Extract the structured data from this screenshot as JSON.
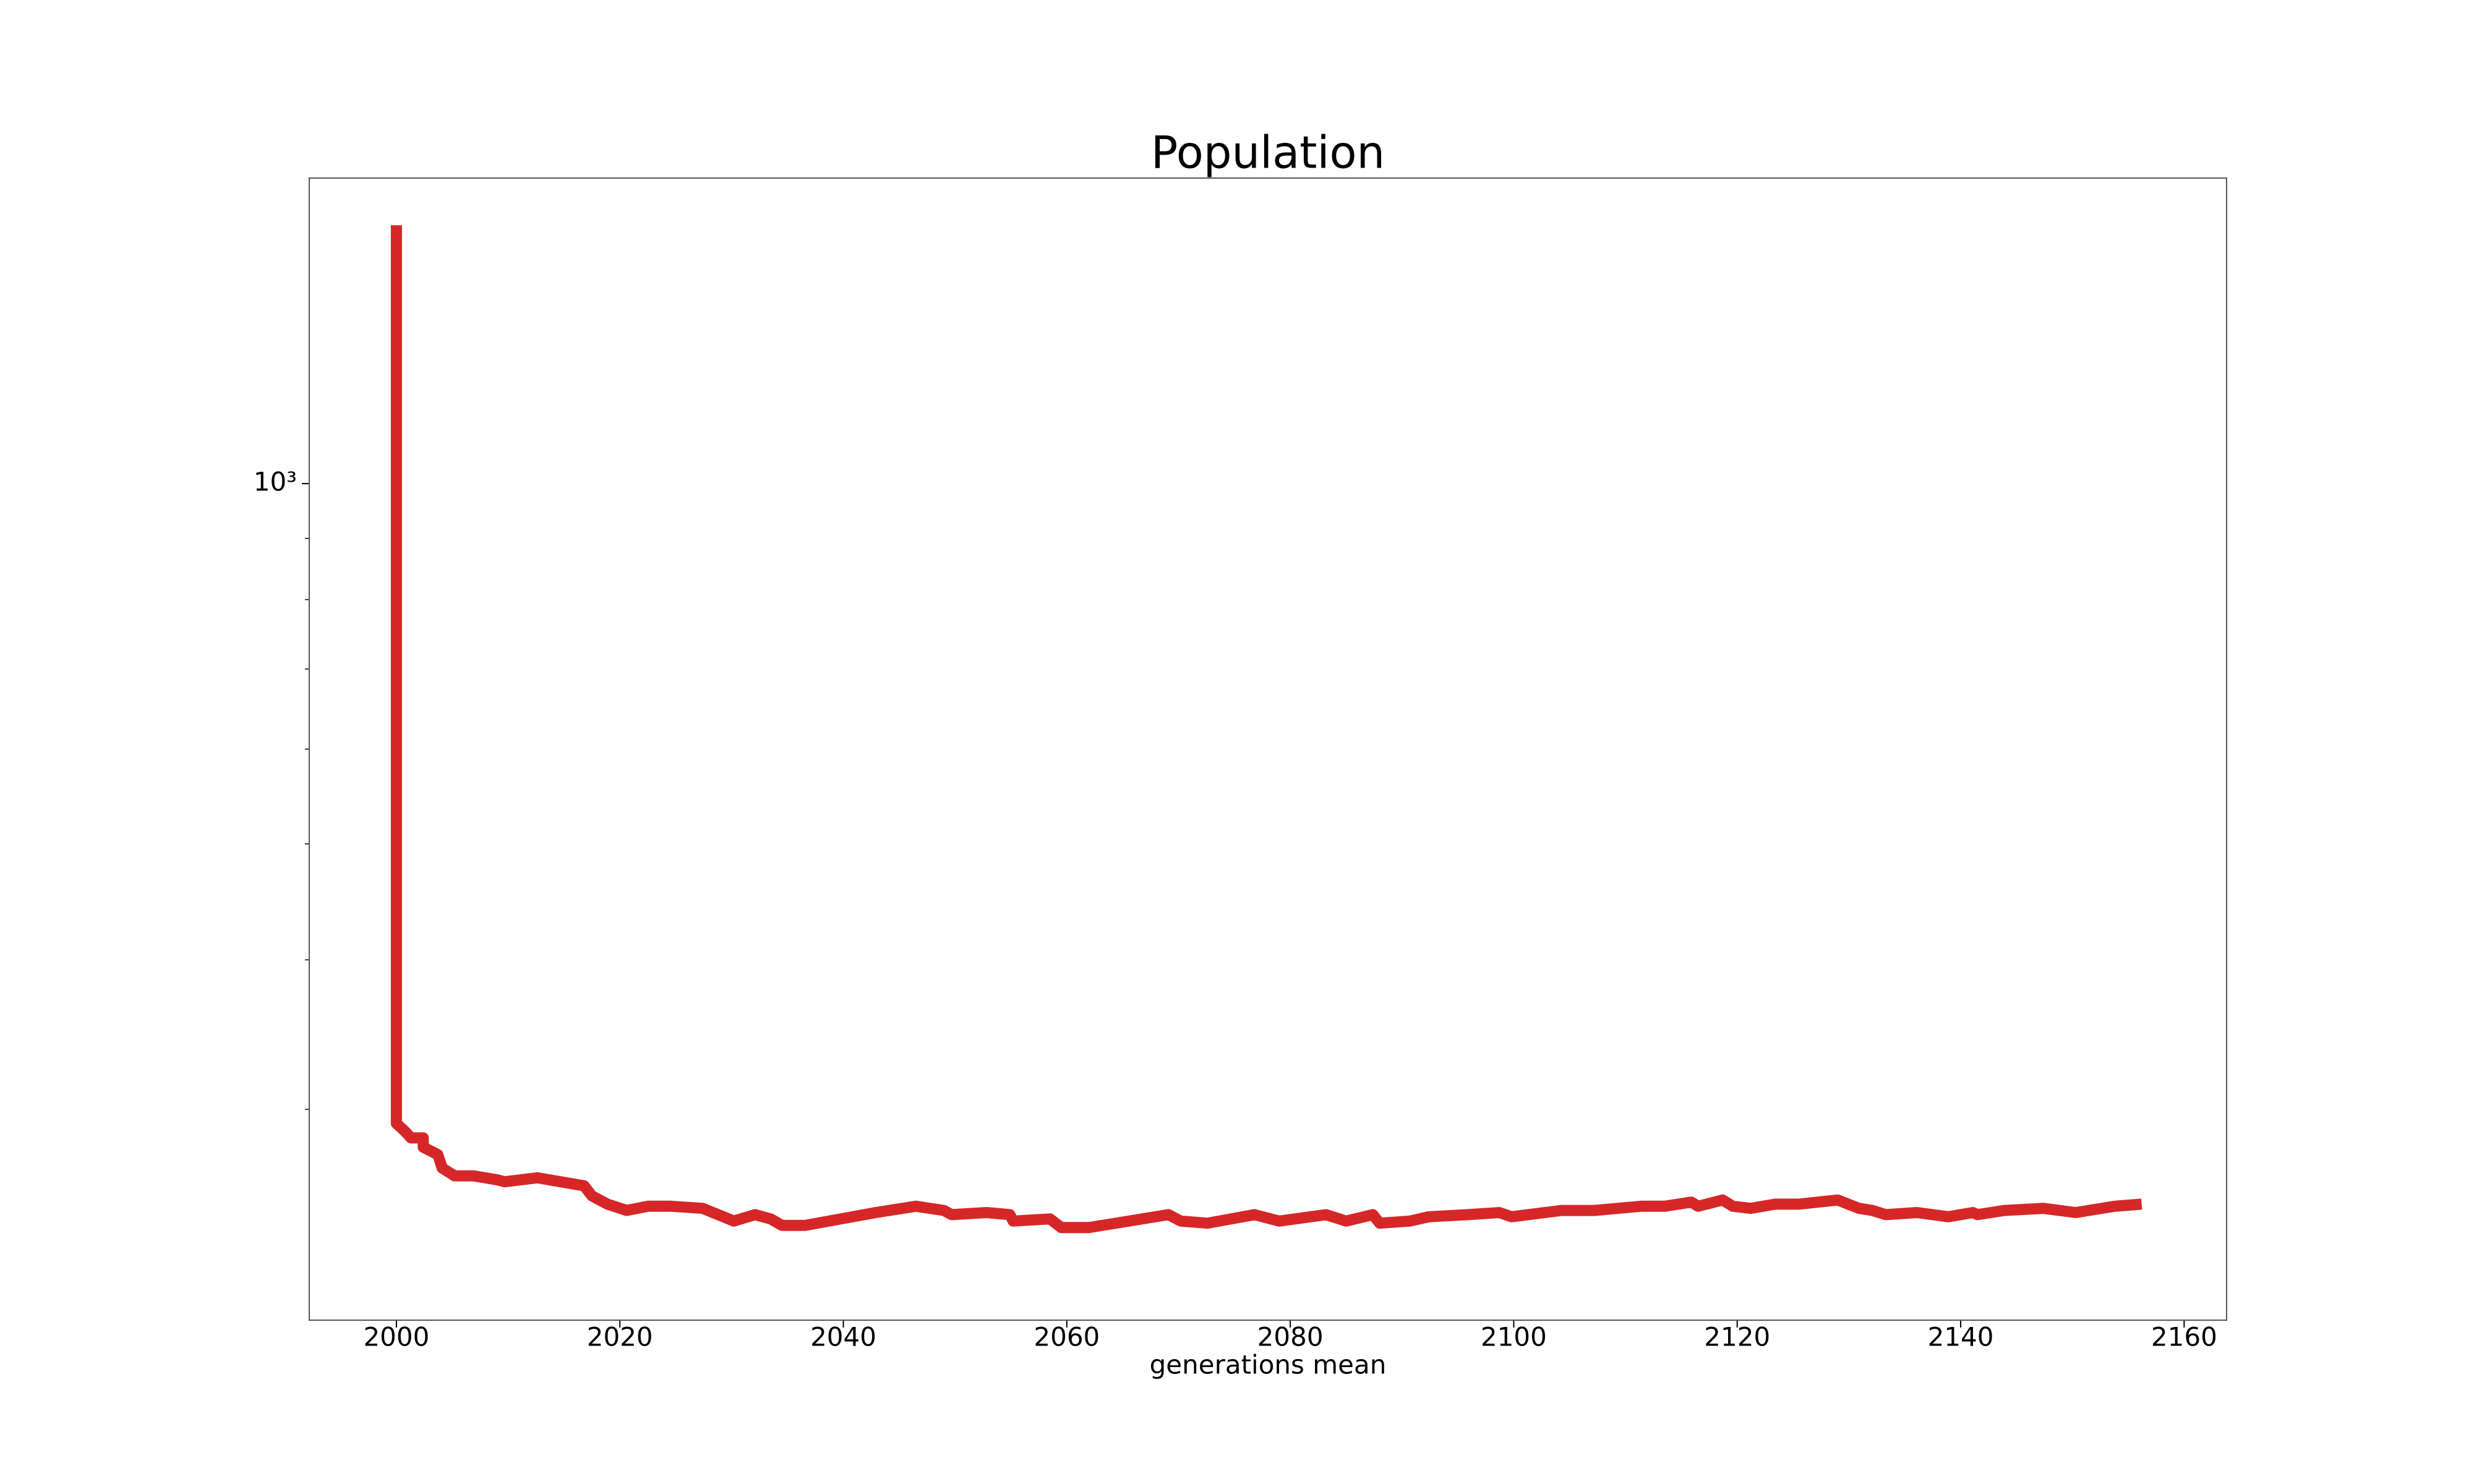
{
  "chart_data": {
    "type": "line",
    "title": "Population",
    "xlabel": "generations mean",
    "yscale": "log",
    "xlim": [
      1992.2,
      2163.8
    ],
    "ylim": [
      200,
      1800
    ],
    "xticks": [
      2000,
      2020,
      2040,
      2060,
      2080,
      2100,
      2120,
      2140,
      2160
    ],
    "yticks": [
      {
        "value": 1000,
        "label": "10³"
      }
    ],
    "yminorticks": [
      300,
      400,
      500,
      600,
      700,
      800,
      900
    ],
    "series": [
      {
        "color": "#d62728",
        "x": [
          2000,
          2000,
          2000.7,
          2001.3,
          2002.4,
          2002.4,
          2003.7,
          2004.1,
          2005.2,
          2006.9,
          2009.0,
          2009.7,
          2012.6,
          2014.7,
          2016.8,
          2017.5,
          2018.9,
          2020.6,
          2022.5,
          2024.6,
          2027.4,
          2028.8,
          2030.2,
          2032.1,
          2033.5,
          2034.5,
          2036.6,
          2038.7,
          2042.9,
          2046.5,
          2049.0,
          2049.7,
          2052.8,
          2054.9,
          2055.2,
          2058.5,
          2059.5,
          2062.0,
          2069.1,
          2070.2,
          2072.6,
          2076.8,
          2079.0,
          2083.2,
          2085.0,
          2087.4,
          2088.0,
          2090.7,
          2092.4,
          2095.9,
          2098.7,
          2099.8,
          2104.3,
          2107.2,
          2111.4,
          2113.5,
          2115.9,
          2116.5,
          2118.7,
          2119.6,
          2121.2,
          2123.4,
          2125.5,
          2129.0,
          2130.9,
          2132.1,
          2133.3,
          2136.1,
          2138.9,
          2141.1,
          2141.5,
          2143.9,
          2147.4,
          2150.3,
          2153.8,
          2156.2
        ],
        "values": [
          1644,
          292,
          288,
          284,
          284,
          279,
          275,
          268,
          264,
          264,
          262,
          261,
          263,
          261,
          259,
          254,
          250,
          247,
          249,
          249,
          248,
          245,
          242,
          245,
          243,
          240,
          240,
          242,
          246,
          249,
          247,
          245,
          246,
          245,
          242,
          243,
          239,
          239,
          245,
          242,
          241,
          245,
          242,
          245,
          242,
          245,
          241,
          242,
          244,
          245,
          246,
          244,
          247,
          247,
          249,
          249,
          251,
          249,
          252,
          249,
          248,
          250,
          250,
          252,
          248,
          247,
          245,
          246,
          244,
          246,
          245,
          247,
          248,
          246,
          249,
          250
        ]
      }
    ]
  }
}
